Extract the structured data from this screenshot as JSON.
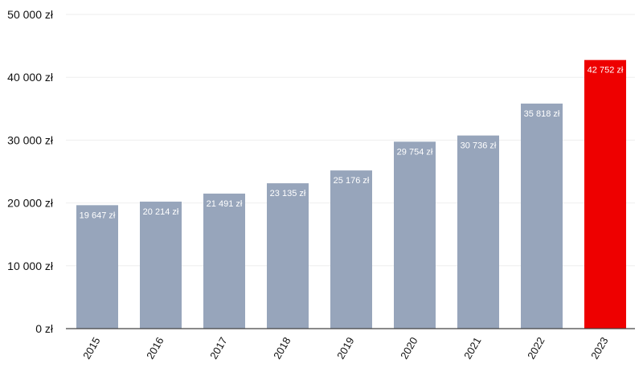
{
  "chart_data": {
    "type": "bar",
    "categories": [
      "2015",
      "2016",
      "2017",
      "2018",
      "2019",
      "2020",
      "2021",
      "2022",
      "2023"
    ],
    "values": [
      19647,
      20214,
      21491,
      23135,
      25176,
      29754,
      30736,
      35818,
      42752
    ],
    "data_labels": [
      "19 647 zł",
      "20 214 zł",
      "21 491 zł",
      "23 135 zł",
      "25 176 zł",
      "29 754 zł",
      "30 736 zł",
      "35 818 zł",
      "42 752 zł"
    ],
    "y_ticks": [
      0,
      10000,
      20000,
      30000,
      40000,
      50000
    ],
    "y_tick_labels": [
      "0 zł",
      "10 000 zł",
      "20 000 zł",
      "30 000 zł",
      "40 000 zł",
      "50 000 zł"
    ],
    "ylim": [
      0,
      50000
    ],
    "grid": true,
    "legend": "none",
    "colors": {
      "bar": "#97a5bb",
      "highlight": "#ee0000",
      "grid": "#eeeeee",
      "axis": "#444444"
    },
    "highlight_index": 8
  }
}
